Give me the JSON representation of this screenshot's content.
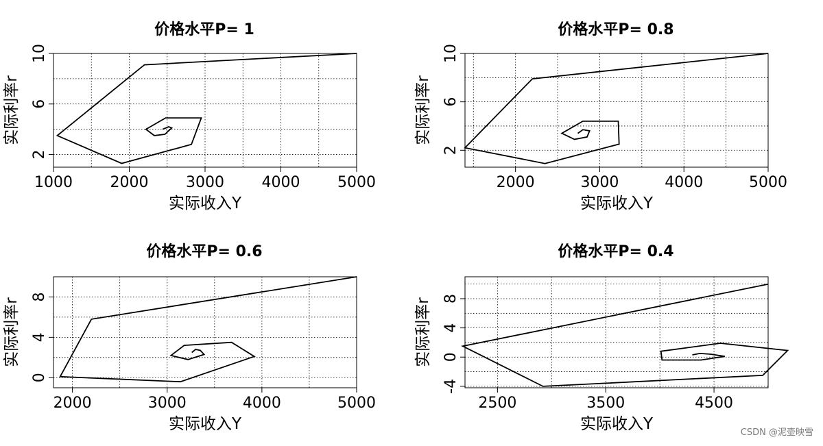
{
  "chart_data": [
    {
      "type": "line",
      "title": "价格水平P= 1",
      "xlabel": "实际收入Y",
      "ylabel": "实际利率r",
      "xlim": [
        1000,
        5000
      ],
      "ylim": [
        1,
        10
      ],
      "x_ticks": [
        1000,
        2000,
        3000,
        4000,
        5000
      ],
      "y_ticks": [
        2,
        6,
        10
      ],
      "grid": true,
      "series": [
        {
          "x": [
            5000,
            2200,
            1050,
            1900,
            2820,
            2950,
            2480,
            2220,
            2330,
            2470,
            2560,
            2520,
            2440
          ],
          "y": [
            10,
            9.1,
            3.5,
            1.3,
            2.8,
            4.9,
            4.9,
            4.0,
            3.5,
            3.6,
            4.1,
            4.2,
            4.0
          ]
        }
      ]
    },
    {
      "type": "line",
      "title": "价格水平P= 0.8",
      "xlabel": "实际收入Y",
      "ylabel": "实际利率r",
      "xlim": [
        1400,
        5000
      ],
      "ylim": [
        0.6,
        10
      ],
      "x_ticks": [
        2000,
        3000,
        4000,
        5000
      ],
      "y_ticks": [
        2,
        6,
        10
      ],
      "grid": true,
      "series": [
        {
          "x": [
            5000,
            2200,
            1400,
            2350,
            3230,
            3220,
            2800,
            2550,
            2700,
            2850,
            2880,
            2800,
            2740
          ],
          "y": [
            10,
            7.9,
            2.2,
            0.9,
            2.5,
            4.4,
            4.4,
            3.4,
            2.9,
            3.1,
            3.6,
            3.7,
            3.4
          ]
        }
      ]
    },
    {
      "type": "line",
      "title": "价格水平P= 0.6",
      "xlabel": "实际收入Y",
      "ylabel": "实际利率r",
      "xlim": [
        1800,
        5000
      ],
      "ylim": [
        -1,
        10
      ],
      "x_ticks": [
        2000,
        3000,
        4000,
        5000
      ],
      "y_ticks": [
        0,
        4,
        8
      ],
      "grid": true,
      "series": [
        {
          "x": [
            5000,
            2200,
            1870,
            3140,
            3920,
            3680,
            3180,
            3040,
            3220,
            3390,
            3350,
            3300,
            3260
          ],
          "y": [
            10,
            5.8,
            0.1,
            -0.4,
            2.1,
            3.5,
            3.2,
            2.2,
            1.8,
            2.3,
            2.7,
            2.8,
            2.5
          ]
        }
      ]
    },
    {
      "type": "line",
      "title": "价格水平P= 0.4",
      "xlabel": "实际收入Y",
      "ylabel": "实际利率r",
      "xlim": [
        2200,
        5000
      ],
      "ylim": [
        -4.2,
        11
      ],
      "x_ticks": [
        2500,
        3500,
        4500
      ],
      "y_ticks": [
        -4,
        0,
        4,
        8
      ],
      "grid": true,
      "series": [
        {
          "x": [
            5000,
            2180,
            2920,
            4950,
            5180,
            4560,
            4010,
            4020,
            4380,
            4600,
            4470,
            4370,
            4300
          ],
          "y": [
            10,
            1.5,
            -4.0,
            -2.5,
            0.9,
            1.9,
            0.8,
            -0.4,
            -0.4,
            0.1,
            0.4,
            0.5,
            0.3
          ]
        }
      ]
    }
  ],
  "watermark": "CSDN @泥壶映雪"
}
